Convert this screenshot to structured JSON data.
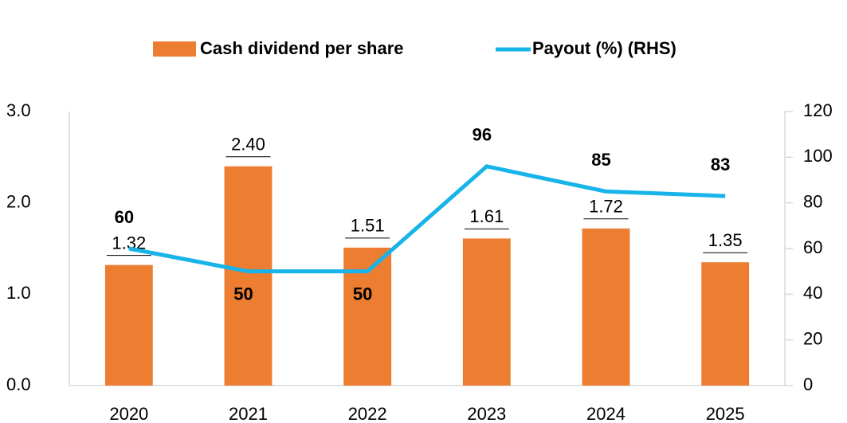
{
  "chart_data": {
    "type": "bar_line",
    "categories": [
      "2020",
      "2021",
      "2022",
      "2023",
      "2024",
      "2025"
    ],
    "series": [
      {
        "name": "Cash dividend per share",
        "type": "bar",
        "color": "#ED7D31",
        "values": [
          1.32,
          2.4,
          1.51,
          1.61,
          1.72,
          1.35
        ],
        "value_labels": [
          "1.32",
          "2.40",
          "1.51",
          "1.61",
          "1.72",
          "1.35"
        ]
      },
      {
        "name": "Payout (%) (RHS)",
        "type": "line",
        "axis": "y2",
        "color": "#18B4E9",
        "values": [
          60,
          50,
          50,
          96,
          85,
          83
        ]
      }
    ],
    "ylim": [
      0,
      3
    ],
    "yticks": [
      {
        "value": 0,
        "label": "0.0"
      },
      {
        "value": 1,
        "label": "1.0"
      },
      {
        "value": 2,
        "label": "2.0"
      },
      {
        "value": 3,
        "label": "3.0"
      }
    ],
    "y2lim": [
      0,
      120
    ],
    "y2ticks": [
      0,
      20,
      40,
      60,
      80,
      100,
      120
    ],
    "legend": "top"
  }
}
